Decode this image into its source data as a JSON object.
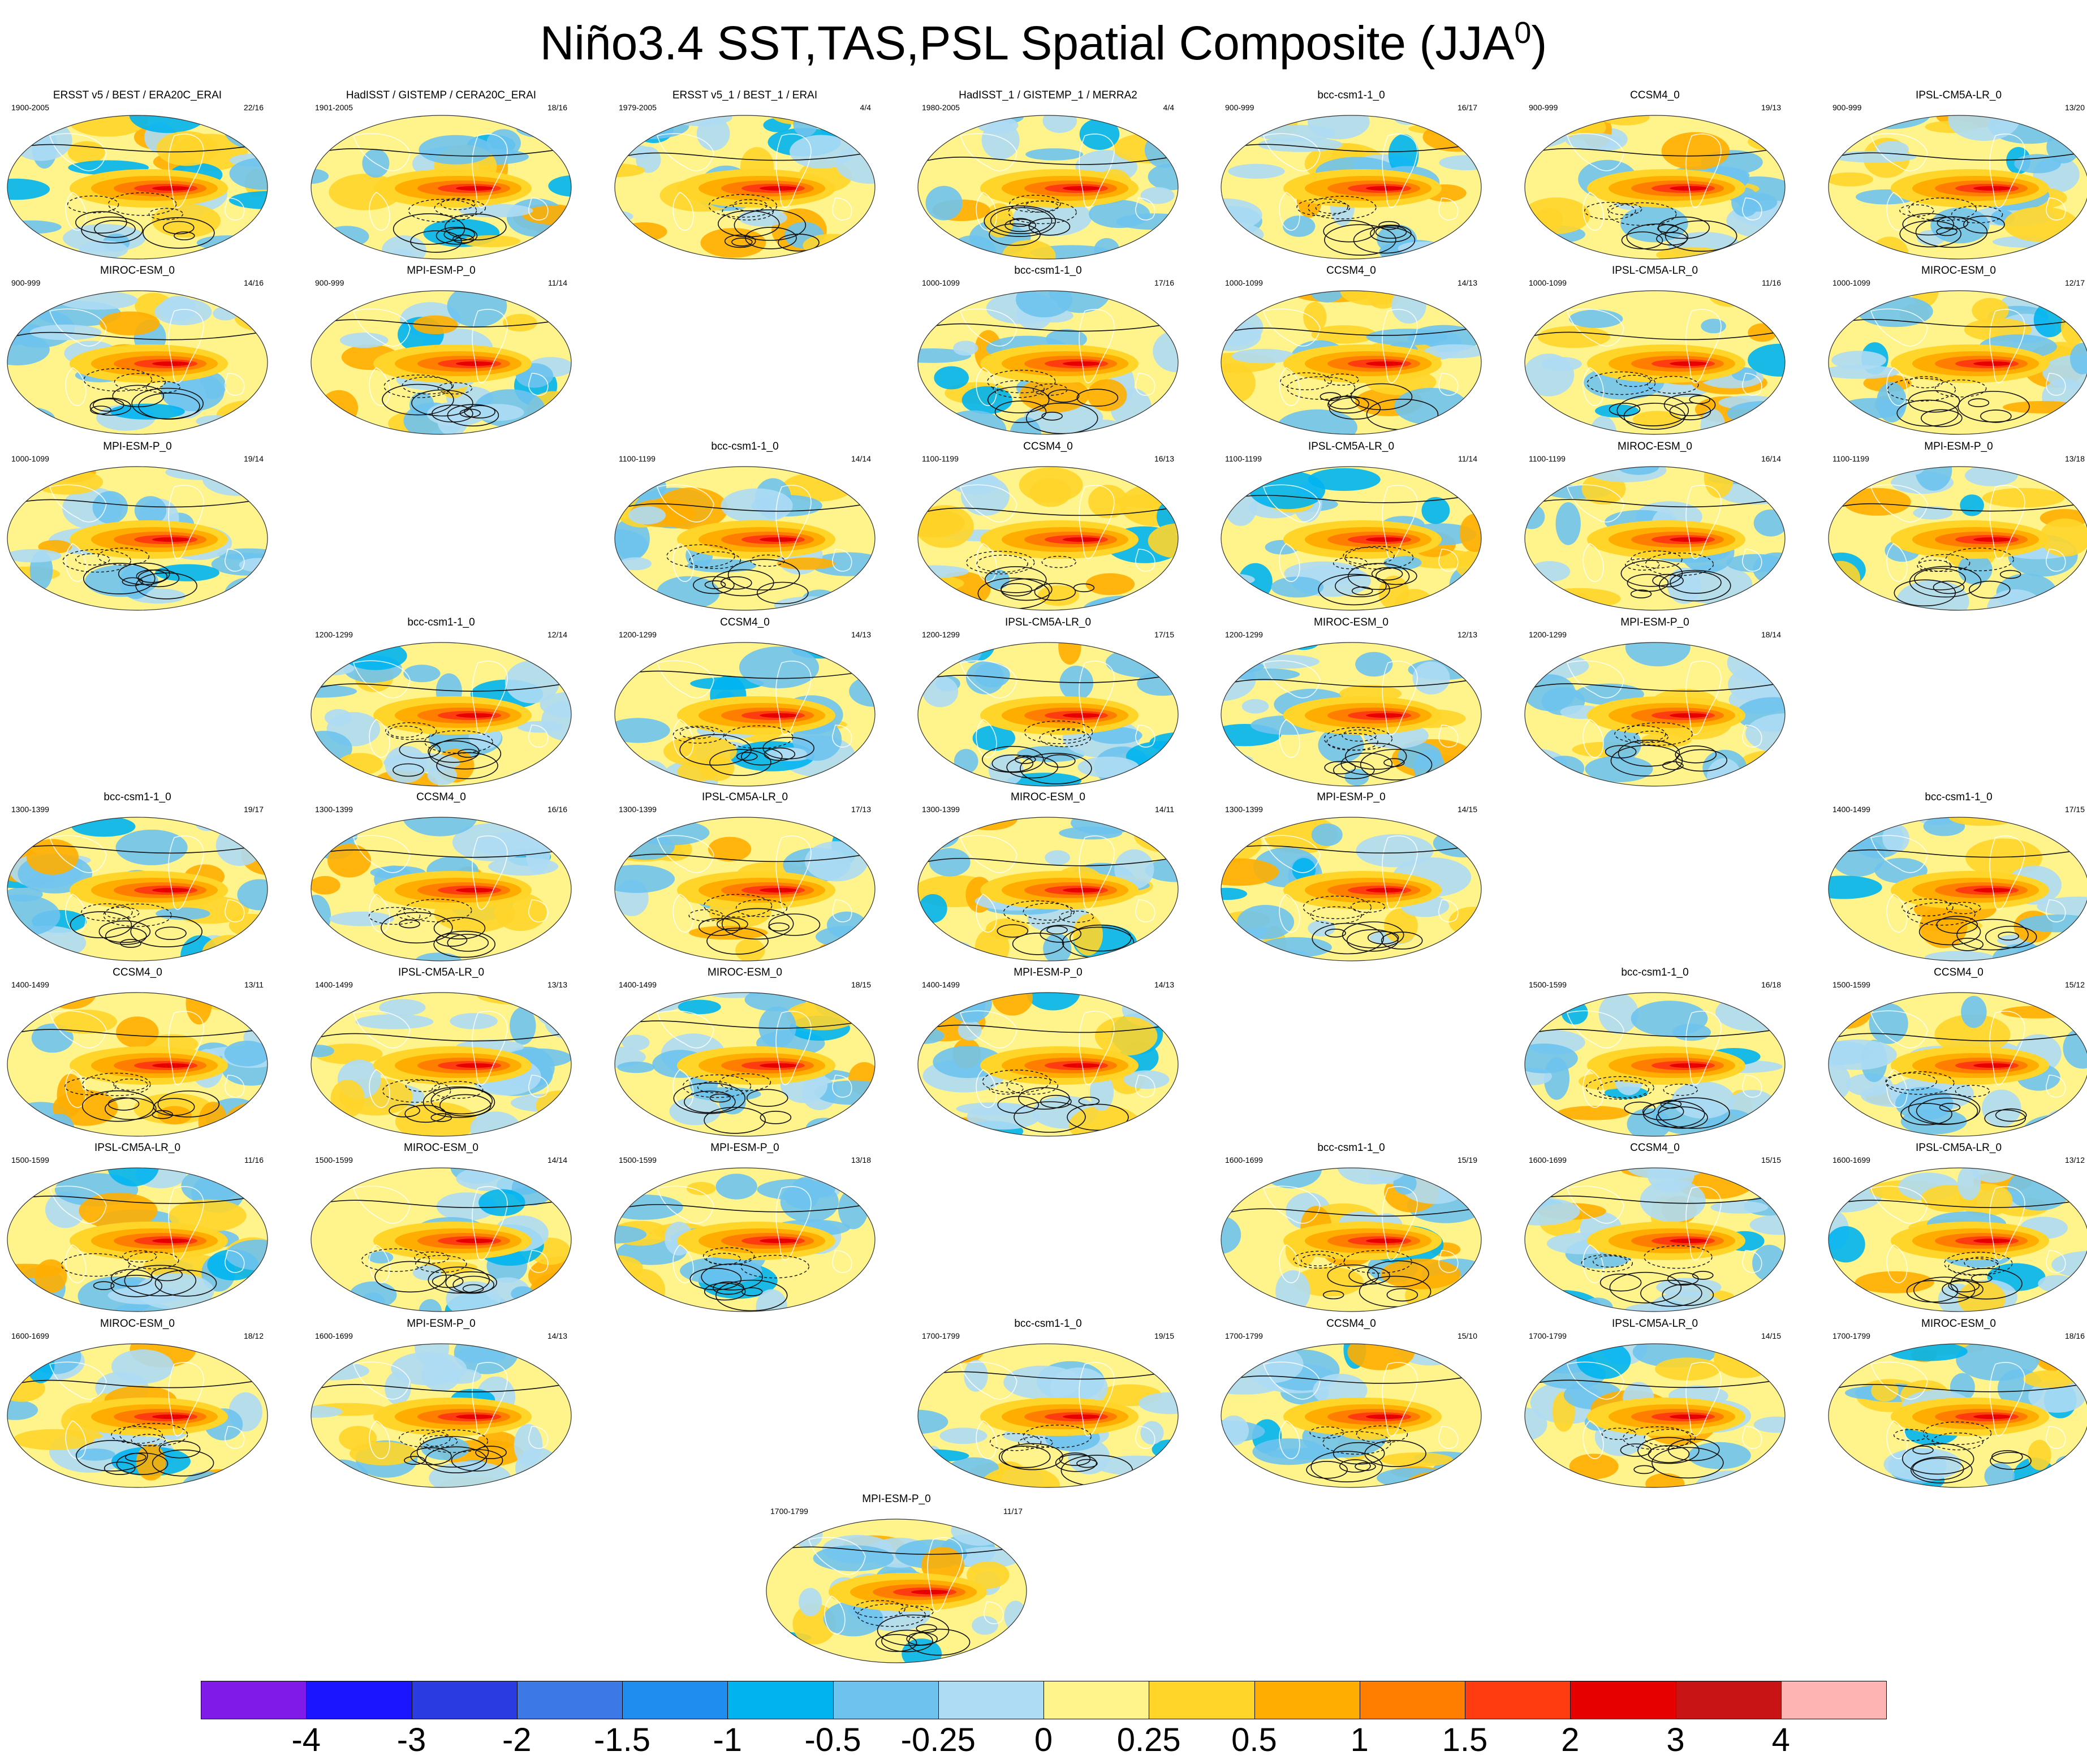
{
  "title": {
    "main": "Niño3.4 SST,TAS,PSL Spatial Composite (JJA",
    "sup": "0",
    "close": ")"
  },
  "colorbar": {
    "colors": [
      "#7f1ae8",
      "#1a14ff",
      "#2a3be0",
      "#3c78e6",
      "#1f8cf0",
      "#00b4f0",
      "#6ec3ee",
      "#aedcf4",
      "#fff38c",
      "#ffd52a",
      "#ffae00",
      "#ff7e00",
      "#ff3c10",
      "#e60000",
      "#c81414",
      "#ffb4b4"
    ],
    "labels": [
      "-4",
      "-3",
      "-2",
      "-1.5",
      "-1",
      "-0.5",
      "-0.25",
      "0",
      "0.25",
      "0.5",
      "1",
      "1.5",
      "2",
      "3",
      "4"
    ]
  },
  "panels": [
    {
      "title": "ERSST v5 / BEST / ERA20C_ERAI",
      "period": "1900-2005",
      "count": "22/16",
      "row": 0,
      "col": 0
    },
    {
      "title": "HadISST / GISTEMP / CERA20C_ERAI",
      "period": "1901-2005",
      "count": "18/16",
      "row": 0,
      "col": 1
    },
    {
      "title": "ERSST v5_1 / BEST_1 / ERAI",
      "period": "1979-2005",
      "count": "4/4",
      "row": 0,
      "col": 2
    },
    {
      "title": "HadISST_1 / GISTEMP_1 / MERRA2",
      "period": "1980-2005",
      "count": "4/4",
      "row": 0,
      "col": 3
    },
    {
      "title": "bcc-csm1-1_0",
      "period": "900-999",
      "count": "16/17",
      "row": 0,
      "col": 4
    },
    {
      "title": "CCSM4_0",
      "period": "900-999",
      "count": "19/13",
      "row": 0,
      "col": 5
    },
    {
      "title": "IPSL-CM5A-LR_0",
      "period": "900-999",
      "count": "13/20",
      "row": 0,
      "col": 6
    },
    {
      "title": "MIROC-ESM_0",
      "period": "900-999",
      "count": "14/16",
      "row": 1,
      "col": 0
    },
    {
      "title": "MPI-ESM-P_0",
      "period": "900-999",
      "count": "11/14",
      "row": 1,
      "col": 1
    },
    {
      "title": "bcc-csm1-1_0",
      "period": "1000-1099",
      "count": "17/16",
      "row": 1,
      "col": 3
    },
    {
      "title": "CCSM4_0",
      "period": "1000-1099",
      "count": "14/13",
      "row": 1,
      "col": 4
    },
    {
      "title": "IPSL-CM5A-LR_0",
      "period": "1000-1099",
      "count": "11/16",
      "row": 1,
      "col": 5
    },
    {
      "title": "MIROC-ESM_0",
      "period": "1000-1099",
      "count": "12/17",
      "row": 1,
      "col": 6
    },
    {
      "title": "MPI-ESM-P_0",
      "period": "1000-1099",
      "count": "19/14",
      "row": 2,
      "col": 0
    },
    {
      "title": "bcc-csm1-1_0",
      "period": "1100-1199",
      "count": "14/14",
      "row": 2,
      "col": 2
    },
    {
      "title": "CCSM4_0",
      "period": "1100-1199",
      "count": "16/13",
      "row": 2,
      "col": 3
    },
    {
      "title": "IPSL-CM5A-LR_0",
      "period": "1100-1199",
      "count": "11/14",
      "row": 2,
      "col": 4
    },
    {
      "title": "MIROC-ESM_0",
      "period": "1100-1199",
      "count": "16/14",
      "row": 2,
      "col": 5
    },
    {
      "title": "MPI-ESM-P_0",
      "period": "1100-1199",
      "count": "13/18",
      "row": 2,
      "col": 6
    },
    {
      "title": "bcc-csm1-1_0",
      "period": "1200-1299",
      "count": "12/14",
      "row": 3,
      "col": 1
    },
    {
      "title": "CCSM4_0",
      "period": "1200-1299",
      "count": "14/13",
      "row": 3,
      "col": 2
    },
    {
      "title": "IPSL-CM5A-LR_0",
      "period": "1200-1299",
      "count": "17/15",
      "row": 3,
      "col": 3
    },
    {
      "title": "MIROC-ESM_0",
      "period": "1200-1299",
      "count": "12/13",
      "row": 3,
      "col": 4
    },
    {
      "title": "MPI-ESM-P_0",
      "period": "1200-1299",
      "count": "18/14",
      "row": 3,
      "col": 5
    },
    {
      "title": "bcc-csm1-1_0",
      "period": "1300-1399",
      "count": "19/17",
      "row": 4,
      "col": 0
    },
    {
      "title": "CCSM4_0",
      "period": "1300-1399",
      "count": "16/16",
      "row": 4,
      "col": 1
    },
    {
      "title": "IPSL-CM5A-LR_0",
      "period": "1300-1399",
      "count": "17/13",
      "row": 4,
      "col": 2
    },
    {
      "title": "MIROC-ESM_0",
      "period": "1300-1399",
      "count": "14/11",
      "row": 4,
      "col": 3
    },
    {
      "title": "MPI-ESM-P_0",
      "period": "1300-1399",
      "count": "14/15",
      "row": 4,
      "col": 4
    },
    {
      "title": "bcc-csm1-1_0",
      "period": "1400-1499",
      "count": "17/15",
      "row": 4,
      "col": 6
    },
    {
      "title": "CCSM4_0",
      "period": "1400-1499",
      "count": "13/11",
      "row": 5,
      "col": 0
    },
    {
      "title": "IPSL-CM5A-LR_0",
      "period": "1400-1499",
      "count": "13/13",
      "row": 5,
      "col": 1
    },
    {
      "title": "MIROC-ESM_0",
      "period": "1400-1499",
      "count": "18/15",
      "row": 5,
      "col": 2
    },
    {
      "title": "MPI-ESM-P_0",
      "period": "1400-1499",
      "count": "14/13",
      "row": 5,
      "col": 3
    },
    {
      "title": "bcc-csm1-1_0",
      "period": "1500-1599",
      "count": "16/18",
      "row": 5,
      "col": 5
    },
    {
      "title": "CCSM4_0",
      "period": "1500-1599",
      "count": "15/12",
      "row": 5,
      "col": 6
    },
    {
      "title": "IPSL-CM5A-LR_0",
      "period": "1500-1599",
      "count": "11/16",
      "row": 6,
      "col": 0
    },
    {
      "title": "MIROC-ESM_0",
      "period": "1500-1599",
      "count": "14/14",
      "row": 6,
      "col": 1
    },
    {
      "title": "MPI-ESM-P_0",
      "period": "1500-1599",
      "count": "13/18",
      "row": 6,
      "col": 2
    },
    {
      "title": "bcc-csm1-1_0",
      "period": "1600-1699",
      "count": "15/19",
      "row": 6,
      "col": 4
    },
    {
      "title": "CCSM4_0",
      "period": "1600-1699",
      "count": "15/15",
      "row": 6,
      "col": 5
    },
    {
      "title": "IPSL-CM5A-LR_0",
      "period": "1600-1699",
      "count": "13/12",
      "row": 6,
      "col": 6
    },
    {
      "title": "MIROC-ESM_0",
      "period": "1600-1699",
      "count": "18/12",
      "row": 7,
      "col": 0
    },
    {
      "title": "MPI-ESM-P_0",
      "period": "1600-1699",
      "count": "14/13",
      "row": 7,
      "col": 1
    },
    {
      "title": "bcc-csm1-1_0",
      "period": "1700-1799",
      "count": "19/15",
      "row": 7,
      "col": 3
    },
    {
      "title": "CCSM4_0",
      "period": "1700-1799",
      "count": "15/10",
      "row": 7,
      "col": 4
    },
    {
      "title": "IPSL-CM5A-LR_0",
      "period": "1700-1799",
      "count": "14/15",
      "row": 7,
      "col": 5
    },
    {
      "title": "MIROC-ESM_0",
      "period": "1700-1799",
      "count": "18/16",
      "row": 7,
      "col": 6
    },
    {
      "title": "MPI-ESM-P_0",
      "period": "1700-1799",
      "count": "11/17",
      "row": 8,
      "col": 2.5
    }
  ]
}
